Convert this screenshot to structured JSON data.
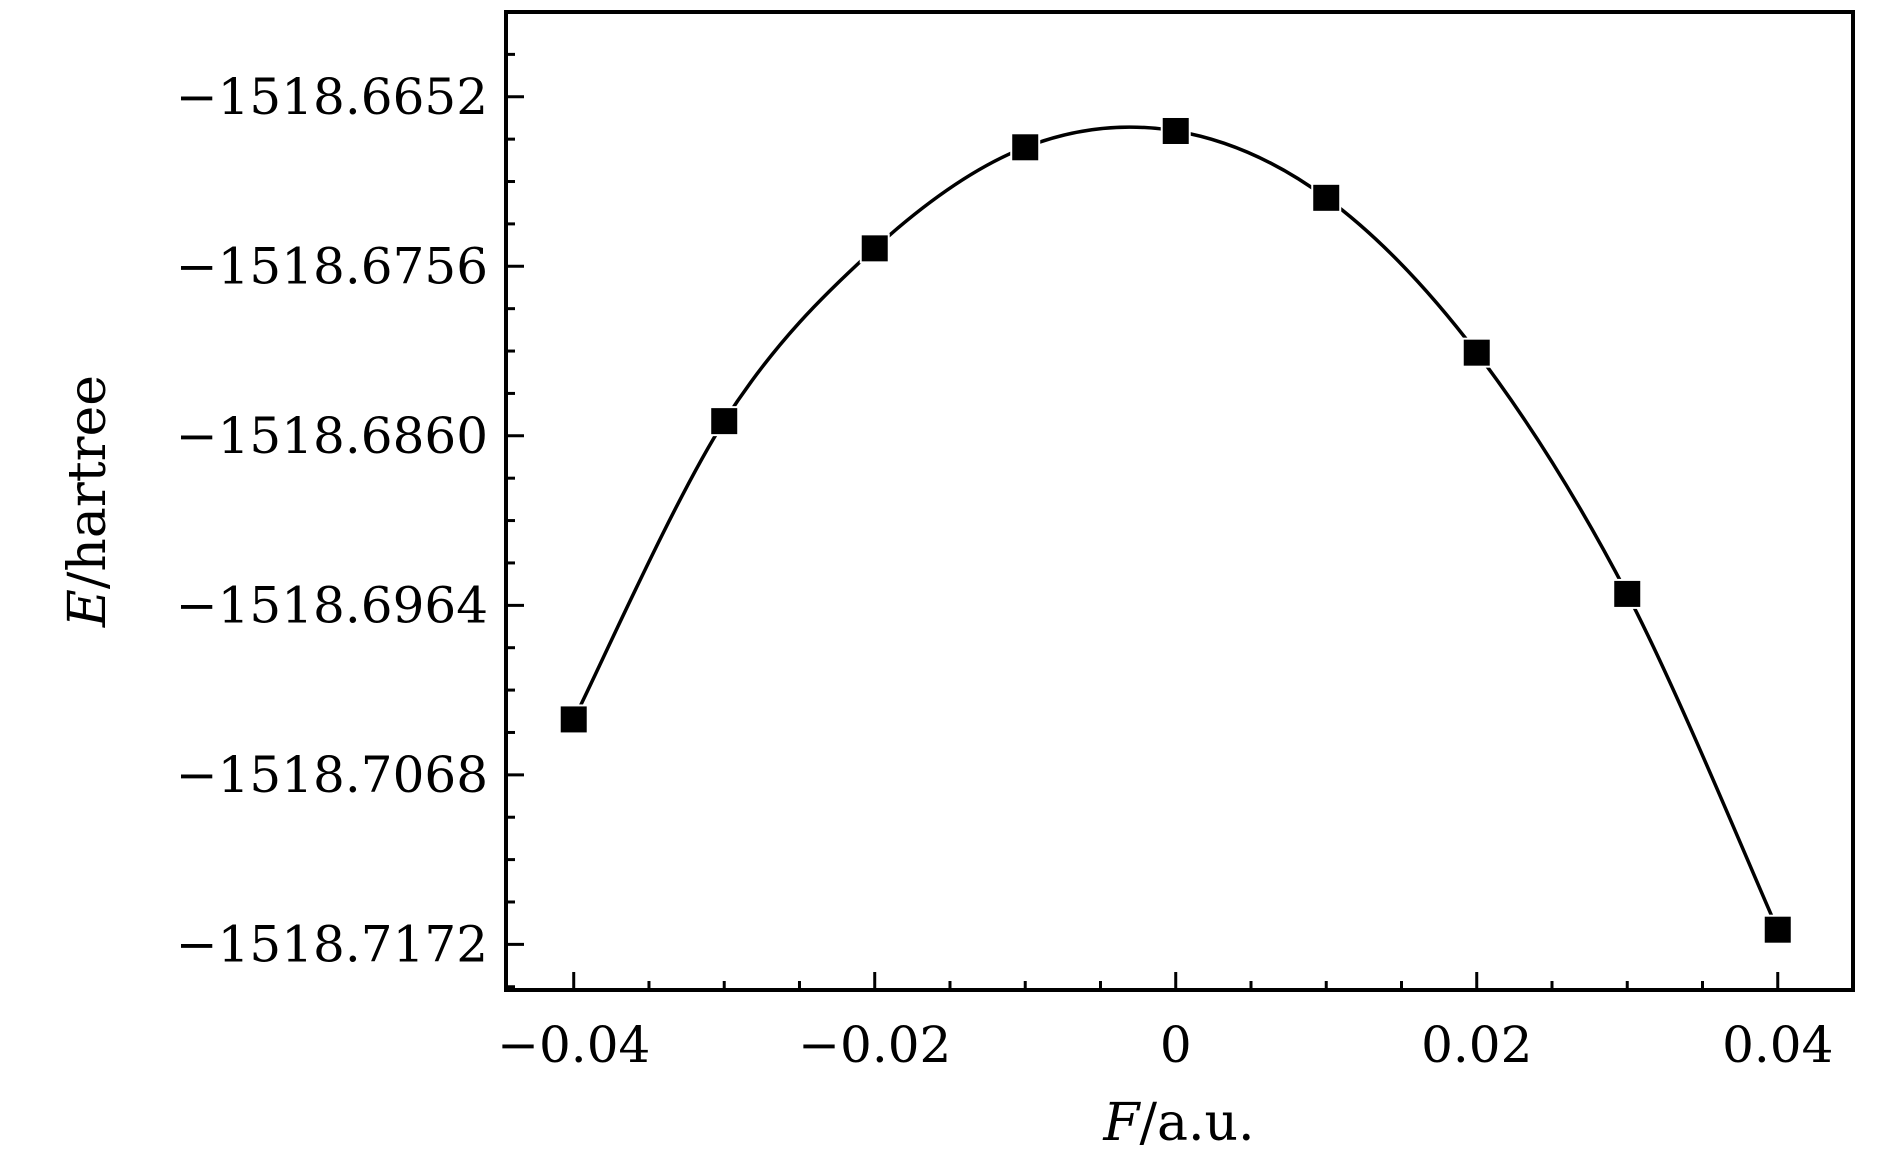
{
  "chart_data": {
    "type": "scatter",
    "xlabel": {
      "var": "F",
      "unit": "/a.u."
    },
    "ylabel": {
      "var": "E",
      "unit": "/hartree"
    },
    "xlim": [
      -0.0445,
      0.045
    ],
    "ylim": [
      -1518.72,
      -1518.66
    ],
    "x_ticks": [
      {
        "value": -0.04,
        "label": "−0.04"
      },
      {
        "value": -0.02,
        "label": "−0.02"
      },
      {
        "value": 0,
        "label": "0"
      },
      {
        "value": 0.02,
        "label": "0.02"
      },
      {
        "value": 0.04,
        "label": "0.04"
      }
    ],
    "y_ticks": [
      {
        "value": -1518.6652,
        "label": "−1518.6652"
      },
      {
        "value": -1518.6756,
        "label": "−1518.6756"
      },
      {
        "value": -1518.686,
        "label": "−1518.6860"
      },
      {
        "value": -1518.6964,
        "label": "−1518.6964"
      },
      {
        "value": -1518.7068,
        "label": "−1518.7068"
      },
      {
        "value": -1518.7172,
        "label": "−1518.7172"
      }
    ],
    "series": [
      {
        "marker": "square",
        "color": "#000000",
        "fit_line": true,
        "x": [
          -0.04,
          -0.03,
          -0.02,
          -0.01,
          0,
          0.01,
          0.02,
          0.03,
          0.04
        ],
        "y": [
          -1518.7034,
          -1518.6851,
          -1518.6745,
          -1518.6683,
          -1518.6673,
          -1518.6714,
          -1518.6809,
          -1518.6957,
          -1518.7163
        ]
      }
    ],
    "grid": false,
    "minor_ticks": true
  }
}
